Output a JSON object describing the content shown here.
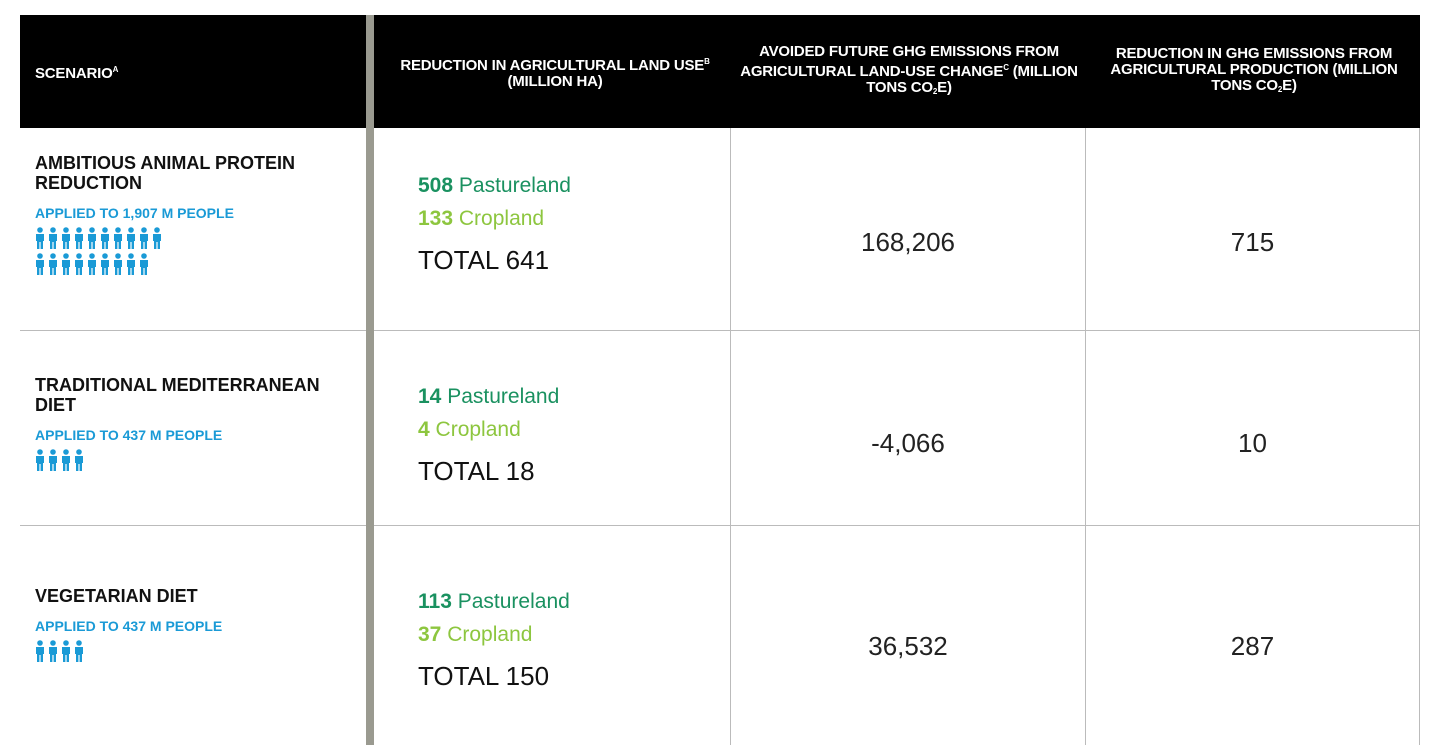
{
  "table": {
    "columns": [
      {
        "label": "SCENARIO",
        "note": "A"
      },
      {
        "label": "REDUCTION IN AGRICULTURAL LAND USE",
        "note": "B",
        "unit": " (MILLION HA)"
      },
      {
        "label": "AVOIDED FUTURE GHG EMISSIONS FROM AGRICULTURAL LAND-USE CHANGE",
        "note": "C",
        "unit": " (MILLION TONS CO",
        "sub": "2",
        "unit_end": "E)"
      },
      {
        "label": "REDUCTION IN GHG EMISSIONS FROM AGRICULTURAL PRODUCTION",
        "unit": "(MILLION TONS CO",
        "sub": "2",
        "unit_end": "E)"
      }
    ],
    "rows": [
      {
        "scenario": "AMBITIOUS ANIMAL PROTEIN REDUCTION",
        "applied": "APPLIED TO 1,907 M PEOPLE",
        "pastureland": 508,
        "pastureland_label": "Pastureland",
        "cropland": 133,
        "cropland_label": "Cropland",
        "total_label": "TOTAL",
        "total": 641,
        "avoided": "168,206",
        "reduction": "715"
      },
      {
        "scenario": "TRADITIONAL MEDITERRANEAN DIET",
        "applied": "APPLIED TO 437 M PEOPLE",
        "pastureland": 14,
        "pastureland_label": "Pastureland",
        "cropland": 4,
        "cropland_label": "Cropland",
        "total_label": "TOTAL",
        "total": 18,
        "avoided": "-4,066",
        "reduction": "10"
      },
      {
        "scenario": "VEGETARIAN DIET",
        "applied": "APPLIED TO 437 M PEOPLE",
        "pastureland": 113,
        "pastureland_label": "Pastureland",
        "cropland": 37,
        "cropland_label": "Cropland",
        "total_label": "TOTAL",
        "total": 150,
        "avoided": "36,532",
        "reduction": "287"
      }
    ]
  }
}
